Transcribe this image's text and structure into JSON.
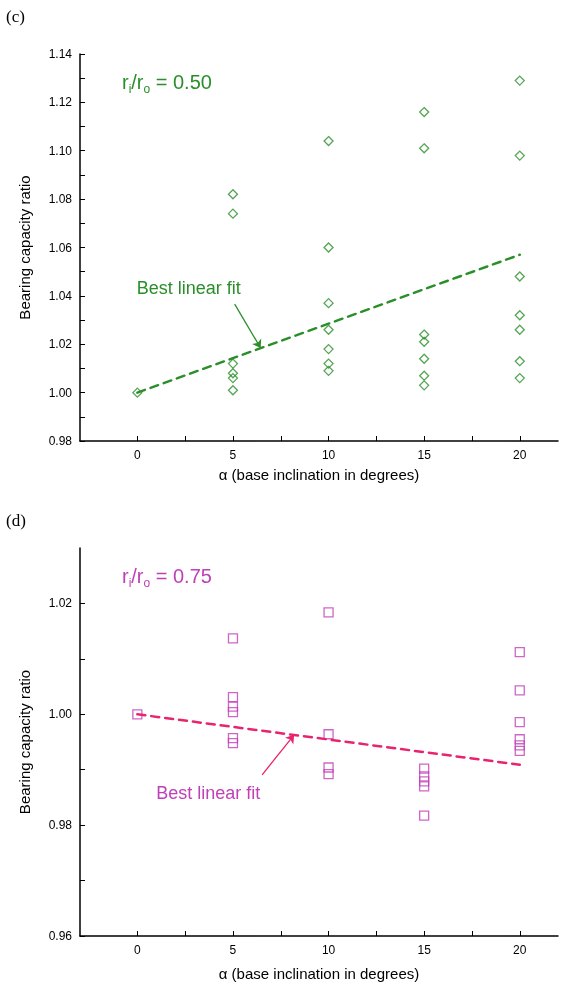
{
  "chart_data": [
    {
      "type": "scatter",
      "title": "(c)",
      "xlabel": "α (base inclination in degrees)",
      "ylabel": "Bearing capacity ratio",
      "annotations": [
        "r$_{i}$/r$_{o}$ = 0.50",
        {
          "text": "Best linear fit",
          "x": 6.45,
          "y": 1.0184
        }
      ],
      "xlim": [
        -3,
        22
      ],
      "xticks": [
        0,
        {
          "value": 2.5,
          "label": null
        },
        5,
        {
          "value": 7.5,
          "label": null
        },
        10,
        {
          "value": 12.5,
          "label": null
        },
        15,
        {
          "value": 17.5,
          "label": null
        },
        20
      ],
      "ylim": [
        0.98,
        1.14
      ],
      "yticks": [
        0.98,
        {
          "value": 0.99,
          "label": null
        },
        "1.00",
        {
          "value": 1.01,
          "label": null
        },
        1.02,
        {
          "value": 1.03,
          "label": null
        },
        1.04,
        {
          "value": 1.05,
          "label": null
        },
        1.06,
        {
          "value": 1.07,
          "label": null
        },
        1.08,
        {
          "value": 1.09,
          "label": null
        },
        "1.10",
        {
          "value": 1.11,
          "label": null
        },
        1.12,
        {
          "value": 1.13,
          "label": null
        },
        1.14
      ],
      "series": [
        {
          "color": "#2a8f2a",
          "marker": "diamond",
          "x": [
            0,
            5,
            5,
            5,
            5,
            5,
            5,
            10,
            10,
            10,
            10,
            10,
            10,
            10,
            15,
            15,
            15,
            15,
            15,
            15,
            15,
            20,
            20,
            20,
            20,
            20,
            20,
            20
          ],
          "values": [
            1.0,
            1.082,
            1.074,
            1.012,
            1.008,
            1.006,
            1.001,
            1.104,
            1.06,
            1.037,
            1.026,
            1.018,
            1.012,
            1.009,
            1.116,
            1.101,
            1.024,
            1.021,
            1.014,
            1.007,
            1.003,
            1.129,
            1.098,
            1.048,
            1.032,
            1.026,
            1.013,
            1.006
          ]
        },
        {
          "type": "line",
          "color": "#2a8f2a",
          "marker": "none",
          "line_style": "dashed",
          "x": [
            0,
            20
          ],
          "values": [
            1.0,
            1.057
          ]
        }
      ]
    },
    {
      "type": "scatter",
      "title": "(d)",
      "xlabel": "α (base inclination in degrees)",
      "ylabel": "Bearing capacity ratio",
      "annotations": [
        "r$_{i}$/r$_{o}$ = 0.75",
        {
          "text": "Best linear fit",
          "x": 8.2,
          "y": 0.9963
        }
      ],
      "xlim": [
        -3,
        22
      ],
      "xticks": [
        0,
        {
          "value": 2.5,
          "label": null
        },
        5,
        {
          "value": 7.5,
          "label": null
        },
        10,
        {
          "value": 12.5,
          "label": null
        },
        15,
        {
          "value": 17.5,
          "label": null
        },
        20
      ],
      "ylim": [
        0.96,
        1.03
      ],
      "yticks": [
        0.96,
        {
          "value": 0.97,
          "label": null
        },
        0.98,
        {
          "value": 0.99,
          "label": null
        },
        "1.00",
        {
          "value": 1.01,
          "label": null
        },
        1.02
      ],
      "series": [
        {
          "color": "#c040b8",
          "marker": "square",
          "x": [
            0,
            5,
            5,
            5,
            5,
            5,
            5,
            10,
            10,
            10,
            10,
            15,
            15,
            15,
            15,
            15,
            20,
            20,
            20,
            20,
            20,
            20
          ],
          "values": [
            1.0,
            1.0137,
            1.0031,
            1.0014,
            1.0004,
            0.9957,
            0.9948,
            1.0184,
            0.9964,
            0.9904,
            0.9892,
            0.9902,
            0.9888,
            0.9879,
            0.987,
            0.9817,
            1.0112,
            1.0043,
            0.9986,
            0.9955,
            0.9944,
            0.9934
          ]
        },
        {
          "type": "line",
          "color": "#e8246e",
          "marker": "none",
          "line_style": "dashed",
          "x": [
            0,
            20
          ],
          "values": [
            1.0,
            0.9909
          ]
        }
      ]
    }
  ]
}
